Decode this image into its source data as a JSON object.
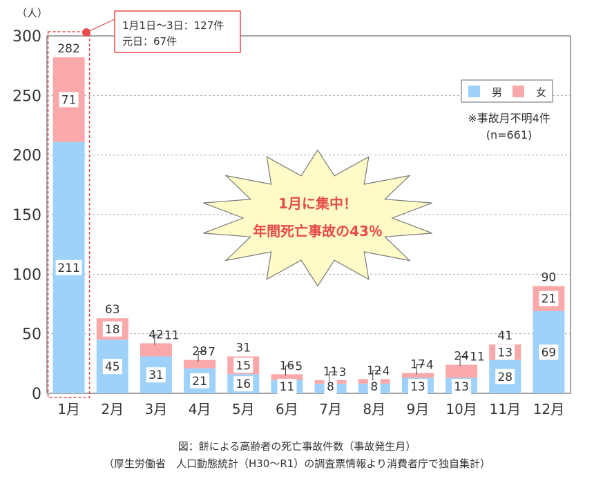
{
  "chart_data": {
    "type": "bar",
    "stacked": true,
    "unit_label": "（人）",
    "ylim": [
      0,
      300
    ],
    "yticks": [
      0,
      50,
      100,
      150,
      200,
      250,
      300
    ],
    "grid": "horizontal-dashed",
    "categories": [
      "1月",
      "2月",
      "3月",
      "4月",
      "5月",
      "6月",
      "7月",
      "8月",
      "9月",
      "10月",
      "11月",
      "12月"
    ],
    "series": [
      {
        "name": "男",
        "color": "#9ED2FA",
        "values": [
          211,
          45,
          31,
          21,
          16,
          11,
          8,
          8,
          13,
          13,
          28,
          69
        ]
      },
      {
        "name": "女",
        "color": "#F9A9A9",
        "values": [
          71,
          18,
          11,
          7,
          15,
          5,
          3,
          4,
          4,
          11,
          13,
          21
        ]
      }
    ],
    "totals": [
      282,
      63,
      42,
      28,
      31,
      16,
      11,
      12,
      17,
      24,
      41,
      90
    ],
    "legend_position": "top-right",
    "notes": [
      "※事故月不明4件",
      "(n=661)"
    ],
    "callout": {
      "lines": [
        "1月1日〜3日：127件",
        "元日：67件"
      ],
      "color": "#E64A4A"
    },
    "burst": {
      "lines": [
        "1月に集中！",
        "年間死亡事故の43％"
      ],
      "fill": "#FFFBC8",
      "text_color": "#E64A4A"
    },
    "highlight_category": "1月"
  },
  "caption": {
    "line1": "図：餅による高齢者の死亡事故件数（事故発生月）",
    "line2": "（厚生労働省　人口動態統計（H30〜R1）の調査票情報より消費者庁で独自集計）"
  }
}
